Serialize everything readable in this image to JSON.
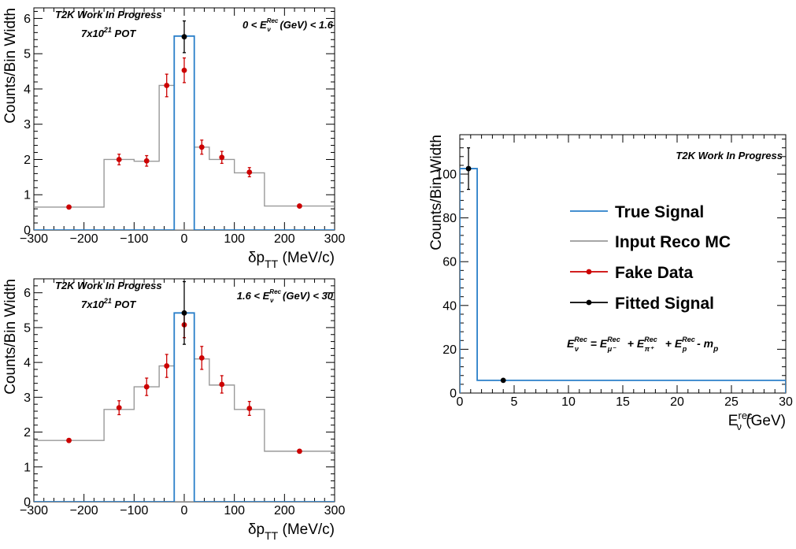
{
  "chart_data": [
    {
      "type": "histogram",
      "xlabel": "δp",
      "xlabel_sub": "TT",
      "xlabel_unit": " (MeV/c)",
      "ylabel": "Counts/Bin Width",
      "xlim": [
        -300,
        300
      ],
      "ylim": [
        0,
        6.3
      ],
      "xticks": [
        -300,
        -200,
        -100,
        0,
        100,
        200,
        300
      ],
      "xtick_labels": [
        "−300",
        "−200",
        "−100",
        "0",
        "100",
        "200",
        "300"
      ],
      "yticks": [
        0,
        1,
        2,
        3,
        4,
        5,
        6
      ],
      "ytick_labels": [
        "0",
        "1",
        "2",
        "3",
        "4",
        "5",
        "6"
      ],
      "notes": {
        "work_in_progress": "T2K Work In Progress",
        "pot_base": "7x10",
        "pot_exp": "21",
        "pot_unit": " POT",
        "cut_pre": "0 < E",
        "cut_sup": "Rec",
        "cut_sub": "ν",
        "cut_post": " (GeV) < 1.6"
      },
      "bin_edges": [
        -300,
        -160,
        -100,
        -50,
        -20,
        0,
        20,
        50,
        100,
        160,
        300
      ],
      "series": [
        {
          "name": "Input Reco MC",
          "color": "#999999",
          "style": "step",
          "values": [
            0.65,
            2.0,
            1.95,
            4.1,
            0.0,
            0.0,
            2.35,
            2.0,
            1.62,
            0.68
          ]
        },
        {
          "name": "True Signal",
          "color": "#2a7fc9",
          "style": "step",
          "values": [
            0,
            0,
            0,
            0,
            5.5,
            5.5,
            0,
            0,
            0,
            0
          ]
        },
        {
          "name": "Fake Data",
          "color": "#cc0000",
          "style": "points",
          "x": [
            -230,
            -130,
            -75,
            -35,
            0,
            35,
            75,
            130,
            230
          ],
          "y": [
            0.65,
            2.0,
            1.96,
            4.1,
            4.53,
            2.35,
            2.06,
            1.64,
            0.68
          ],
          "err": [
            0.03,
            0.15,
            0.15,
            0.32,
            0.35,
            0.2,
            0.17,
            0.13,
            0.03
          ]
        },
        {
          "name": "Fitted Signal",
          "color": "#000000",
          "style": "points",
          "x": [
            0
          ],
          "y": [
            5.48
          ],
          "err": [
            0.45
          ]
        }
      ]
    },
    {
      "type": "histogram",
      "xlabel": "δp",
      "xlabel_sub": "TT",
      "xlabel_unit": " (MeV/c)",
      "ylabel": "Counts/Bin Width",
      "xlim": [
        -300,
        300
      ],
      "ylim": [
        0,
        6.4
      ],
      "xticks": [
        -300,
        -200,
        -100,
        0,
        100,
        200,
        300
      ],
      "xtick_labels": [
        "−300",
        "−200",
        "−100",
        "0",
        "100",
        "200",
        "300"
      ],
      "yticks": [
        0,
        1,
        2,
        3,
        4,
        5,
        6
      ],
      "ytick_labels": [
        "0",
        "1",
        "2",
        "3",
        "4",
        "5",
        "6"
      ],
      "notes": {
        "work_in_progress": "T2K Work In Progress",
        "pot_base": "7x10",
        "pot_exp": "21",
        "pot_unit": " POT",
        "cut_pre": "1.6 < E",
        "cut_sup": "Rec",
        "cut_sub": "ν",
        "cut_post": " (GeV) < 30"
      },
      "bin_edges": [
        -300,
        -160,
        -100,
        -50,
        -20,
        0,
        20,
        50,
        100,
        160,
        300
      ],
      "series": [
        {
          "name": "Input Reco MC",
          "color": "#999999",
          "style": "step",
          "values": [
            1.76,
            2.65,
            3.3,
            3.9,
            0.0,
            0.0,
            4.1,
            3.35,
            2.65,
            1.45
          ]
        },
        {
          "name": "True Signal",
          "color": "#2a7fc9",
          "style": "step",
          "values": [
            0,
            0,
            0,
            0,
            5.42,
            5.42,
            0,
            0,
            0,
            0
          ]
        },
        {
          "name": "Fake Data",
          "color": "#cc0000",
          "style": "points",
          "x": [
            -230,
            -130,
            -75,
            -35,
            0,
            35,
            75,
            130,
            230
          ],
          "y": [
            1.76,
            2.7,
            3.3,
            3.9,
            5.08,
            4.13,
            3.37,
            2.68,
            1.45
          ],
          "err": [
            0.05,
            0.2,
            0.25,
            0.33,
            0.37,
            0.33,
            0.25,
            0.2,
            0.05
          ]
        },
        {
          "name": "Fitted Signal",
          "color": "#000000",
          "style": "points",
          "x": [
            0
          ],
          "y": [
            5.42
          ],
          "err": [
            0.9
          ]
        }
      ]
    },
    {
      "type": "histogram",
      "xlabel": "E",
      "xlabel_sub": "ν",
      "xlabel_sup": "rec",
      "xlabel_unit": " (GeV)",
      "ylabel": "Counts/Bin Width",
      "xlim": [
        0,
        30
      ],
      "ylim": [
        0,
        118
      ],
      "xticks": [
        0,
        5,
        10,
        15,
        20,
        25,
        30
      ],
      "xtick_labels": [
        "0",
        "5",
        "10",
        "15",
        "20",
        "25",
        "30"
      ],
      "yticks": [
        0,
        20,
        40,
        60,
        80,
        100
      ],
      "ytick_labels": [
        "0",
        "20",
        "40",
        "60",
        "80",
        "100"
      ],
      "notes": {
        "work_in_progress": "T2K Work In Progress"
      },
      "bin_edges": [
        0,
        1.6,
        30
      ],
      "series": [
        {
          "name": "True Signal",
          "color": "#2a7fc9",
          "style": "step",
          "values": [
            102.5,
            5.8
          ]
        },
        {
          "name": "Input Reco MC",
          "color": "#999999",
          "style": "step",
          "values": []
        },
        {
          "name": "Fake Data",
          "color": "#cc0000",
          "style": "points",
          "x": [],
          "y": [],
          "err": []
        },
        {
          "name": "Fitted Signal",
          "color": "#000000",
          "style": "points",
          "x": [
            0.8,
            4.0
          ],
          "y": [
            102.5,
            5.8
          ],
          "err": [
            9.5,
            0.6
          ]
        }
      ],
      "legend": {
        "placement": "right",
        "entries": [
          "True Signal",
          "Input Reco MC",
          "Fake Data",
          "Fitted Signal"
        ]
      },
      "formula": {
        "lhs": "E",
        "lhs_sub": "ν",
        "lhs_sup": "Rec",
        "terms": [
          {
            "op": " = ",
            "base": "E",
            "sub": "μ⁻",
            "sup": "Rec"
          },
          {
            "op": " + ",
            "base": "E",
            "sub": "π⁺",
            "sup": "Rec"
          },
          {
            "op": " + ",
            "base": "E",
            "sub": "p",
            "sup": "Rec"
          }
        ],
        "tail": " - m",
        "tail_sub": "p"
      }
    }
  ]
}
